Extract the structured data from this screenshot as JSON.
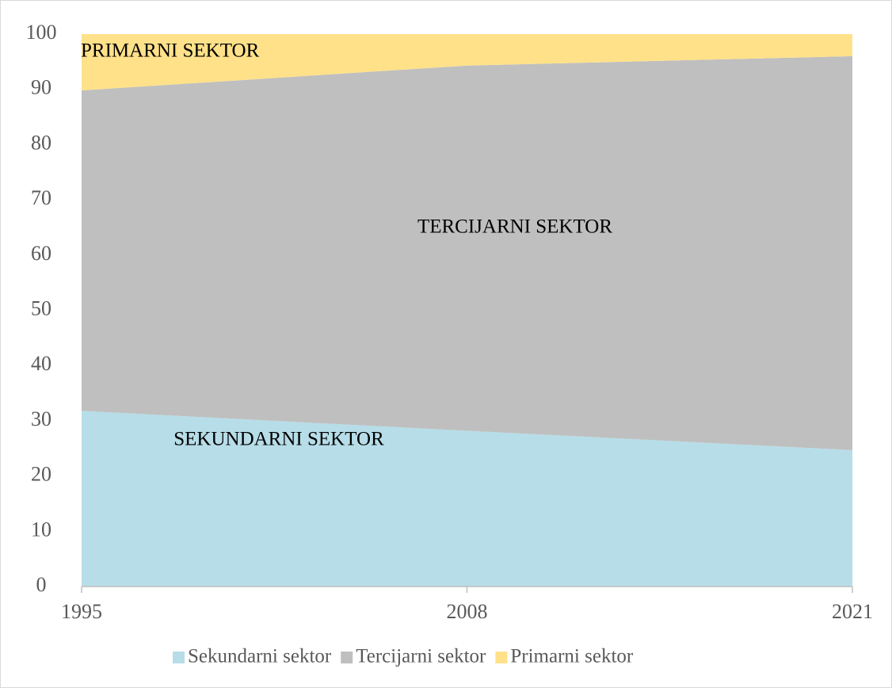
{
  "chart_data": {
    "type": "stacked_area",
    "x": [
      1995,
      2008,
      2021
    ],
    "xlim": [
      1995,
      2021
    ],
    "xticks": [
      1995,
      2008,
      2021
    ],
    "ylim": [
      0,
      100
    ],
    "yticks": [
      0,
      10,
      20,
      30,
      40,
      50,
      60,
      70,
      80,
      90,
      100
    ],
    "series": [
      {
        "name": "Sekundarni sektor",
        "color": "#b7dde8",
        "values": [
          31.8,
          28.2,
          24.7
        ]
      },
      {
        "name": "Tercijarni sektor",
        "color": "#bfbfbf",
        "values": [
          58.0,
          66.1,
          71.3
        ]
      },
      {
        "name": "Primarni sektor",
        "color": "#ffe18a",
        "values": [
          10.2,
          5.7,
          4.0
        ]
      }
    ],
    "annotations": [
      "PRIMARNI SEKTOR",
      "TERCIJARNI SEKTOR",
      "SEKUNDARNI SEKTOR"
    ],
    "legend": "bottom"
  }
}
